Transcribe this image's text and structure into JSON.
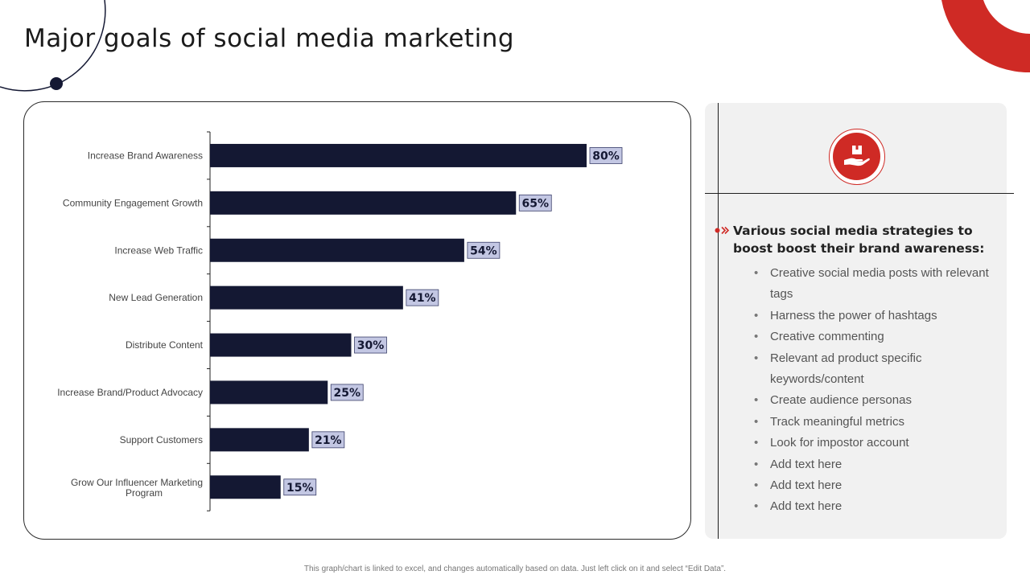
{
  "page": {
    "title": "Major goals of social media marketing",
    "footer_note": "This graph/chart is linked to excel, and changes automatically based on data. Just left click on it and select “Edit Data”."
  },
  "colors": {
    "bar": "#141833",
    "label_fill": "#c3c7e3",
    "accent_red": "#cf2a25",
    "dark_navy": "#141833"
  },
  "chart_data": {
    "type": "bar",
    "orientation": "horizontal",
    "categories": [
      "Increase Brand Awareness",
      "Community Engagement Growth",
      "Increase Web Traffic",
      "New Lead Generation",
      "Distribute Content",
      "Increase Brand/Product Advocacy",
      "Support Customers",
      "Grow Our Influencer Marketing Program"
    ],
    "values": [
      80,
      65,
      54,
      41,
      30,
      25,
      21,
      15
    ],
    "value_labels": [
      "80%",
      "65%",
      "54%",
      "41%",
      "30%",
      "25%",
      "21%",
      "15%"
    ],
    "xlim": [
      0,
      100
    ],
    "grid": false
  },
  "panel": {
    "icon": "hand-holding-box-icon",
    "heading": "Various social media strategies to boost boost their brand awareness:",
    "items": [
      "Creative social media posts with relevant tags",
      "Harness the power of hashtags",
      "Creative commenting",
      "Relevant ad product specific keywords/content",
      "Create audience personas",
      "Track meaningful metrics",
      "Look for impostor account",
      "Add text here",
      "Add text here",
      "Add text here"
    ]
  }
}
